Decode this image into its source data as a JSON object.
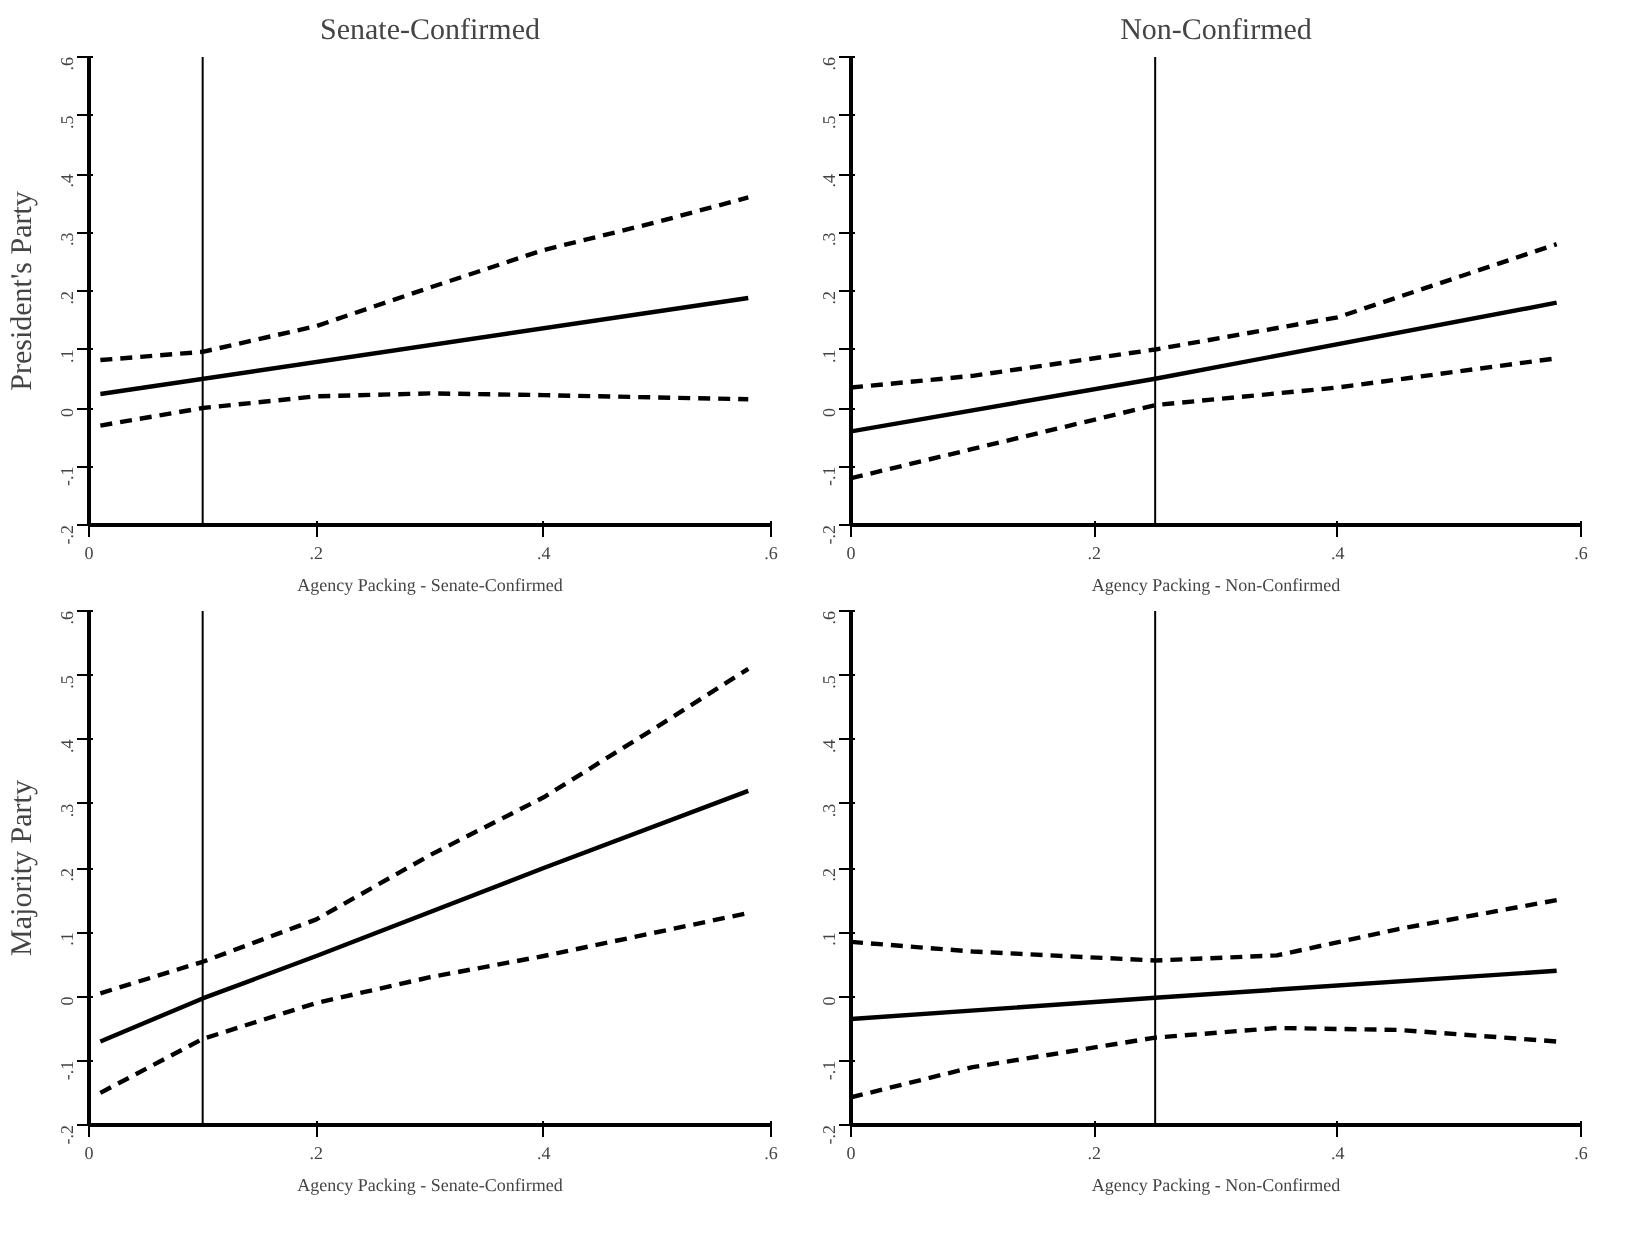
{
  "chart_data": [
    {
      "type": "line",
      "title": "Senate-Confirmed",
      "ylabel": "President's Party",
      "xlabel": "Agency Packing - Senate-Confirmed",
      "xlim": [
        0,
        0.6
      ],
      "ylim": [
        -0.2,
        0.6
      ],
      "xticks": [
        {
          "value": 0,
          "label": "0"
        },
        {
          "value": 0.2,
          "label": ".2"
        },
        {
          "value": 0.4,
          "label": ".4"
        },
        {
          "value": 0.6,
          "label": ".6"
        }
      ],
      "yticks": [
        {
          "value": -0.2,
          "label": "-.2"
        },
        {
          "value": -0.1,
          "label": "-.1"
        },
        {
          "value": 0,
          "label": "0"
        },
        {
          "value": 0.1,
          "label": ".1"
        },
        {
          "value": 0.2,
          "label": ".2"
        },
        {
          "value": 0.3,
          "label": ".3"
        },
        {
          "value": 0.4,
          "label": ".4"
        },
        {
          "value": 0.5,
          "label": ".5"
        },
        {
          "value": 0.6,
          "label": ".6"
        }
      ],
      "grid": false,
      "ref_lines": [
        {
          "axis": "x",
          "value": 0.1,
          "color": "#000000"
        }
      ],
      "series": [
        {
          "color": "#000000",
          "line_style": "solid",
          "x": [
            0.01,
            0.58
          ],
          "values": [
            0.024,
            0.188
          ]
        },
        {
          "color": "#000000",
          "line_style": "dashed",
          "x": [
            0.01,
            0.1,
            0.2,
            0.3,
            0.4,
            0.5,
            0.58
          ],
          "values": [
            0.082,
            0.096,
            0.14,
            0.206,
            0.27,
            0.318,
            0.36
          ]
        },
        {
          "color": "#000000",
          "line_style": "dashed",
          "x": [
            0.01,
            0.1,
            0.2,
            0.3,
            0.4,
            0.5,
            0.58
          ],
          "values": [
            -0.03,
            0.0,
            0.02,
            0.025,
            0.022,
            0.018,
            0.015
          ]
        }
      ]
    },
    {
      "type": "line",
      "title": "Non-Confirmed",
      "xlabel": "Agency Packing - Non-Confirmed",
      "xlim": [
        0,
        0.6
      ],
      "ylim": [
        -0.2,
        0.6
      ],
      "xticks": [
        {
          "value": 0,
          "label": "0"
        },
        {
          "value": 0.2,
          "label": ".2"
        },
        {
          "value": 0.4,
          "label": ".4"
        },
        {
          "value": 0.6,
          "label": ".6"
        }
      ],
      "yticks": [
        {
          "value": -0.2,
          "label": "-.2"
        },
        {
          "value": -0.1,
          "label": "-.1"
        },
        {
          "value": 0,
          "label": "0"
        },
        {
          "value": 0.1,
          "label": ".1"
        },
        {
          "value": 0.2,
          "label": ".2"
        },
        {
          "value": 0.3,
          "label": ".3"
        },
        {
          "value": 0.4,
          "label": ".4"
        },
        {
          "value": 0.5,
          "label": ".5"
        },
        {
          "value": 0.6,
          "label": ".6"
        }
      ],
      "grid": false,
      "ref_lines": [
        {
          "axis": "x",
          "value": 0.25,
          "color": "#000000"
        }
      ],
      "series": [
        {
          "color": "#000000",
          "line_style": "solid",
          "x": [
            0.0,
            0.25,
            0.58
          ],
          "values": [
            -0.04,
            0.05,
            0.18
          ]
        },
        {
          "color": "#000000",
          "line_style": "dashed",
          "x": [
            0.0,
            0.1,
            0.25,
            0.4,
            0.58
          ],
          "values": [
            0.035,
            0.055,
            0.1,
            0.155,
            0.28
          ]
        },
        {
          "color": "#000000",
          "line_style": "dashed",
          "x": [
            0.0,
            0.1,
            0.25,
            0.4,
            0.58
          ],
          "values": [
            -0.12,
            -0.07,
            0.005,
            0.035,
            0.085
          ]
        }
      ]
    },
    {
      "type": "line",
      "ylabel": "Majority Party",
      "xlabel": "Agency Packing - Senate-Confirmed",
      "xlim": [
        0,
        0.6
      ],
      "ylim": [
        -0.2,
        0.6
      ],
      "xticks": [
        {
          "value": 0,
          "label": "0"
        },
        {
          "value": 0.2,
          "label": ".2"
        },
        {
          "value": 0.4,
          "label": ".4"
        },
        {
          "value": 0.6,
          "label": ".6"
        }
      ],
      "yticks": [
        {
          "value": -0.2,
          "label": "-.2"
        },
        {
          "value": -0.1,
          "label": "-.1"
        },
        {
          "value": 0,
          "label": "0"
        },
        {
          "value": 0.1,
          "label": ".1"
        },
        {
          "value": 0.2,
          "label": ".2"
        },
        {
          "value": 0.3,
          "label": ".3"
        },
        {
          "value": 0.4,
          "label": ".4"
        },
        {
          "value": 0.5,
          "label": ".5"
        },
        {
          "value": 0.6,
          "label": ".6"
        }
      ],
      "grid": false,
      "ref_lines": [
        {
          "axis": "x",
          "value": 0.1,
          "color": "#000000"
        }
      ],
      "series": [
        {
          "color": "#000000",
          "line_style": "solid",
          "x": [
            0.01,
            0.1,
            0.2,
            0.4,
            0.58
          ],
          "values": [
            -0.07,
            -0.003,
            0.063,
            0.2,
            0.32
          ]
        },
        {
          "color": "#000000",
          "line_style": "dashed",
          "x": [
            0.01,
            0.1,
            0.2,
            0.3,
            0.4,
            0.5,
            0.58
          ],
          "values": [
            0.005,
            0.054,
            0.12,
            0.22,
            0.31,
            0.42,
            0.51
          ]
        },
        {
          "color": "#000000",
          "line_style": "dashed",
          "x": [
            0.01,
            0.1,
            0.2,
            0.3,
            0.4,
            0.58
          ],
          "values": [
            -0.15,
            -0.066,
            -0.01,
            0.03,
            0.063,
            0.13
          ]
        }
      ]
    },
    {
      "type": "line",
      "xlabel": "Agency Packing - Non-Confirmed",
      "xlim": [
        0,
        0.6
      ],
      "ylim": [
        -0.2,
        0.6
      ],
      "xticks": [
        {
          "value": 0,
          "label": "0"
        },
        {
          "value": 0.2,
          "label": ".2"
        },
        {
          "value": 0.4,
          "label": ".4"
        },
        {
          "value": 0.6,
          "label": ".6"
        }
      ],
      "yticks": [
        {
          "value": -0.2,
          "label": "-.2"
        },
        {
          "value": -0.1,
          "label": "-.1"
        },
        {
          "value": 0,
          "label": "0"
        },
        {
          "value": 0.1,
          "label": ".1"
        },
        {
          "value": 0.2,
          "label": ".2"
        },
        {
          "value": 0.3,
          "label": ".3"
        },
        {
          "value": 0.4,
          "label": ".4"
        },
        {
          "value": 0.5,
          "label": ".5"
        },
        {
          "value": 0.6,
          "label": ".6"
        }
      ],
      "grid": false,
      "ref_lines": [
        {
          "axis": "x",
          "value": 0.25,
          "color": "#000000"
        }
      ],
      "series": [
        {
          "color": "#000000",
          "line_style": "solid",
          "x": [
            0.0,
            0.25,
            0.58
          ],
          "values": [
            -0.035,
            -0.002,
            0.04
          ]
        },
        {
          "color": "#000000",
          "line_style": "dashed",
          "x": [
            0.0,
            0.1,
            0.25,
            0.35,
            0.45,
            0.58
          ],
          "values": [
            0.085,
            0.07,
            0.056,
            0.064,
            0.105,
            0.15
          ]
        },
        {
          "color": "#000000",
          "line_style": "dashed",
          "x": [
            0.0,
            0.1,
            0.25,
            0.35,
            0.45,
            0.58
          ],
          "values": [
            -0.157,
            -0.11,
            -0.064,
            -0.049,
            -0.052,
            -0.07
          ]
        }
      ]
    }
  ]
}
